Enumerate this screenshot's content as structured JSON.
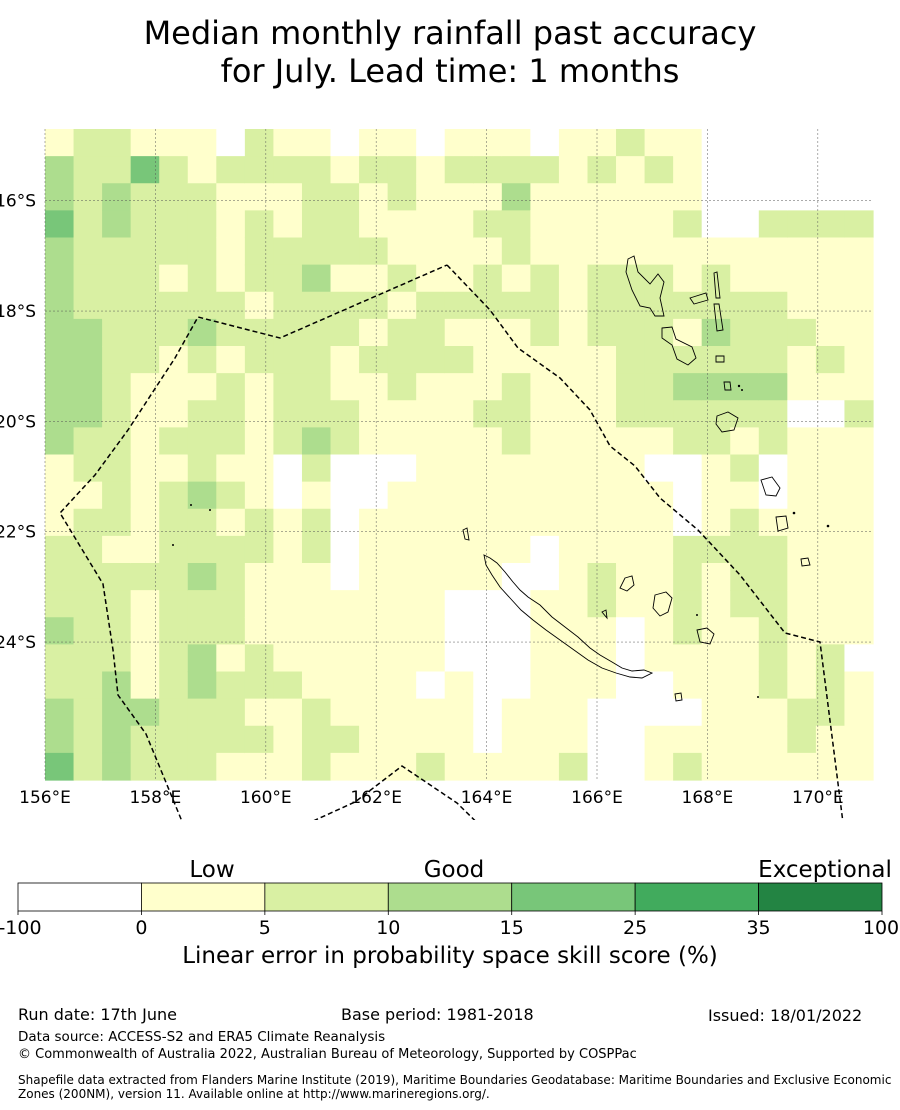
{
  "title_line1": "Median monthly rainfall past accuracy",
  "title_line2": "for July. Lead time: 1 months",
  "map": {
    "lon_range": [
      156,
      171
    ],
    "lat_range": [
      -26.5,
      -14.7
    ],
    "lon_ticks": [
      156,
      158,
      160,
      162,
      164,
      166,
      168,
      170
    ],
    "lon_tick_labels": [
      "156°E",
      "158°E",
      "160°E",
      "162°E",
      "164°E",
      "166°E",
      "168°E",
      "170°E"
    ],
    "lat_ticks": [
      -16,
      -18,
      -20,
      -22,
      -24
    ],
    "lat_tick_labels": [
      "16°S",
      "18°S",
      "20°S",
      "22°S",
      "24°S"
    ],
    "grid": true,
    "colors": [
      "#ffffff",
      "#ffffcc",
      "#d9f0a3",
      "#addd8e",
      "#78c679",
      "#41ab5d",
      "#238443"
    ],
    "grid_values": [
      "133433333333111222322334",
      "222222233332212222222222",
      "223322222222222122223333",
      "142222222111111121111322",
      "122221221112122222222222",
      "112222232122232232233222",
      "021111221222121222212221",
      "221222122111112211122121",
      "121122222222001111112111",
      "122223222223212211111222",
      "012221221122000001111121",
      "121121212111001111111111",
      "122112122211011111111111",
      "011111222111111111110112",
      "121111212111111110001111",
      "121212211121111110000001",
      "123221211222111100000111",
      "021112221111111001111111",
      "111111111111111111111112",
      "121112221111111122111000",
      "211112222221111111000000",
      "121112222221011111110011",
      "111211212322000222211012",
      "000012232322111211111111",
      "000011222321212222111111",
      "000211222322001222222111",
      "000211121101111111111221",
      "000211112101111111122211",
      "000211111121111111101111"
    ]
  },
  "legend": {
    "categories": [
      "Low",
      "Good",
      "Exceptional"
    ],
    "bins": [
      {
        "from": -100,
        "to": 0,
        "color": "#ffffff"
      },
      {
        "from": 0,
        "to": 5,
        "color": "#ffffcc"
      },
      {
        "from": 5,
        "to": 10,
        "color": "#d9f0a3"
      },
      {
        "from": 10,
        "to": 15,
        "color": "#addd8e"
      },
      {
        "from": 15,
        "to": 25,
        "color": "#78c679"
      },
      {
        "from": 25,
        "to": 35,
        "color": "#41ab5d"
      },
      {
        "from": 35,
        "to": 100,
        "color": "#238443"
      }
    ],
    "tick_labels": [
      "-100",
      "0",
      "5",
      "10",
      "15",
      "25",
      "35",
      "100"
    ],
    "axis_label": "Linear error in probability space skill score (%)"
  },
  "footer": {
    "run_date": "Run date: 17th June",
    "base_period": "Base period: 1981-2018",
    "issued": "Issued: 18/01/2022",
    "data_source": "Data source: ACCESS-S2 and ERA5 Climate Reanalysis",
    "copyright": "© Commonwealth of Australia 2022, Australian Bureau of Meteorology, Supported by COSPPac",
    "shapefile_line1": "Shapefile data extracted from Flanders Marine Institute (2019), Maritime Boundaries Geodatabase: Maritime Boundaries and Exclusive Economic",
    "shapefile_line2": "Zones (200NM), version 11. Available online at http://www.marineregions.org/."
  }
}
